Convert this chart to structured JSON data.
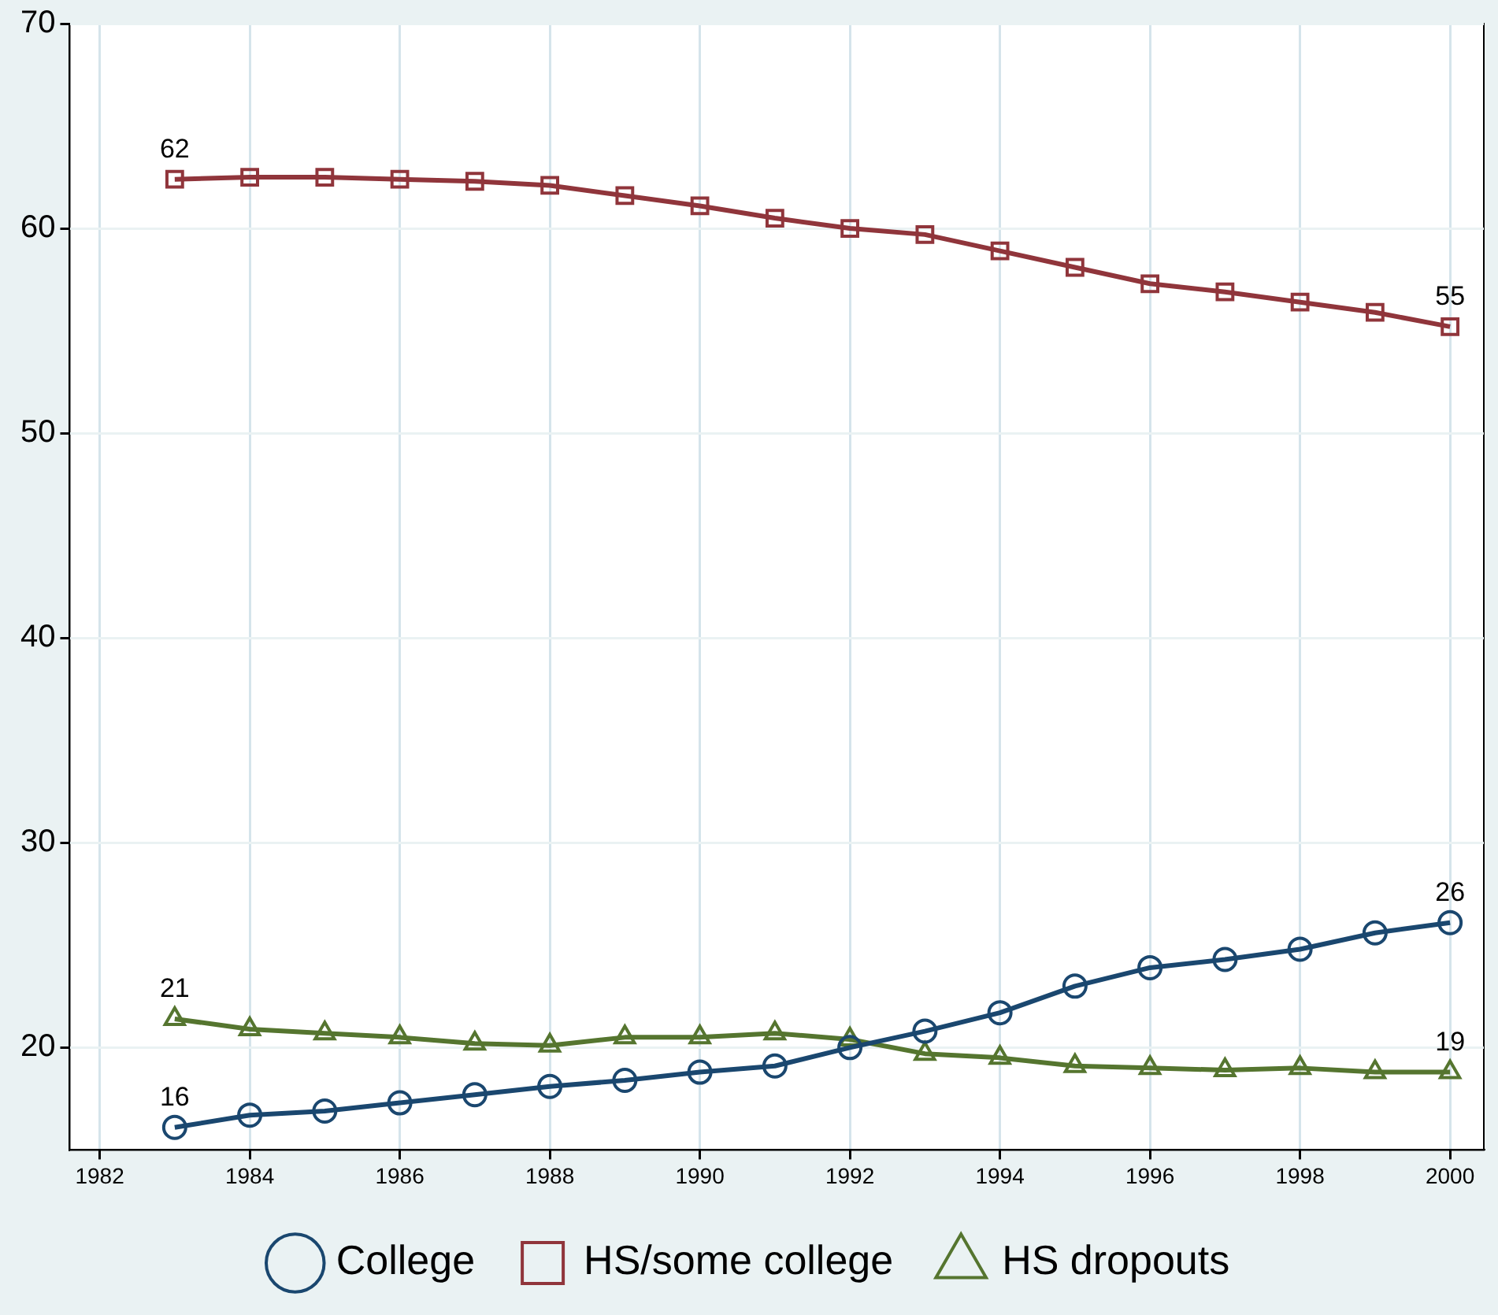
{
  "chart_data": {
    "type": "line",
    "x": [
      1983,
      1984,
      1985,
      1986,
      1987,
      1988,
      1989,
      1990,
      1991,
      1992,
      1993,
      1994,
      1995,
      1996,
      1997,
      1998,
      1999,
      2000
    ],
    "xlim": [
      1981.6,
      2000.45
    ],
    "xticks": [
      1982,
      1984,
      1986,
      1988,
      1990,
      1992,
      1994,
      1996,
      1998,
      2000
    ],
    "ylim": [
      15,
      70
    ],
    "yticks": [
      20,
      30,
      40,
      50,
      60,
      70
    ],
    "grid": true,
    "legend": "bottom",
    "line_style": "solid",
    "series": [
      {
        "name": "College",
        "color": "#1a476f",
        "marker": "circle",
        "values": [
          16.1,
          16.7,
          16.9,
          17.3,
          17.7,
          18.1,
          18.4,
          18.8,
          19.1,
          20.0,
          20.8,
          21.7,
          23.0,
          23.9,
          24.3,
          24.8,
          25.6,
          26.1
        ],
        "value_labels": [
          "16",
          null,
          null,
          null,
          null,
          null,
          null,
          null,
          null,
          null,
          null,
          null,
          null,
          null,
          null,
          null,
          null,
          "26"
        ]
      },
      {
        "name": "HS/some college",
        "color": "#90353b",
        "marker": "square",
        "values": [
          62.4,
          62.5,
          62.5,
          62.4,
          62.3,
          62.1,
          61.6,
          61.1,
          60.5,
          60.0,
          59.7,
          58.9,
          58.1,
          57.3,
          56.9,
          56.4,
          55.9,
          55.2
        ],
        "value_labels": [
          "62",
          null,
          null,
          null,
          null,
          null,
          null,
          null,
          null,
          null,
          null,
          null,
          null,
          null,
          null,
          null,
          null,
          "55"
        ]
      },
      {
        "name": "HS dropouts",
        "color": "#55752f",
        "marker": "triangle",
        "values": [
          21.4,
          20.9,
          20.7,
          20.5,
          20.2,
          20.1,
          20.5,
          20.5,
          20.7,
          20.4,
          19.7,
          19.5,
          19.1,
          19.0,
          18.9,
          19.0,
          18.8,
          18.8
        ],
        "value_labels": [
          "21",
          null,
          null,
          null,
          null,
          null,
          null,
          null,
          null,
          null,
          null,
          null,
          null,
          null,
          null,
          null,
          null,
          "19"
        ]
      }
    ]
  }
}
